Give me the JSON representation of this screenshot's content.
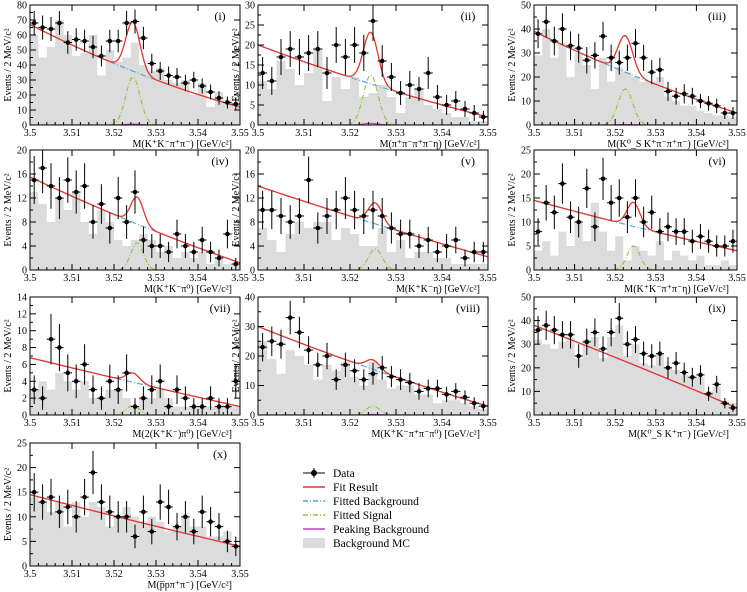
{
  "figure": {
    "legend": [
      {
        "label": "Data",
        "style": "data",
        "color": "#000000"
      },
      {
        "label": "Fit  Result",
        "style": "line",
        "color": "#e8342c"
      },
      {
        "label": "Fitted  Background",
        "style": "dashdot",
        "color": "#4aa8d8"
      },
      {
        "label": "Fitted  Signal",
        "style": "dashdot",
        "color": "#8cc83c"
      },
      {
        "label": "Peaking  Background",
        "style": "line",
        "color": "#c040c0"
      },
      {
        "label": "Background  MC",
        "style": "box",
        "color": "#dcdcdc"
      }
    ],
    "ylabel_text": "Events  /  2  MeV/c²",
    "xticks": [
      "3.5",
      "3.51",
      "3.52",
      "3.53",
      "3.54",
      "3.55"
    ]
  },
  "chart_data": [
    {
      "type": "scatter",
      "panel": "(i)",
      "xlabel": "M(K⁺K⁻π⁺π⁻) [GeV/c²]",
      "ylabel": "Events / 2 MeV/c²",
      "xlim": [
        3.5,
        3.55
      ],
      "ylim": [
        0,
        80
      ],
      "yticks": [
        "0",
        "10",
        "20",
        "30",
        "40",
        "50",
        "60",
        "70",
        "80"
      ],
      "data_y": [
        68,
        65,
        64,
        68,
        55,
        57,
        56,
        52,
        46,
        56,
        56,
        68,
        69,
        58,
        41,
        36,
        33,
        32,
        28,
        30,
        26,
        22,
        18,
        15,
        14
      ],
      "errors": [
        8,
        8,
        8,
        8,
        7.5,
        7.5,
        7.5,
        7.5,
        7,
        7.5,
        7.5,
        8,
        8,
        7.5,
        6.5,
        6,
        6,
        6,
        5.5,
        5.5,
        5,
        5,
        4.5,
        4,
        4
      ],
      "mc": [
        60,
        45,
        52,
        70,
        60,
        46,
        48,
        60,
        33,
        50,
        42,
        45,
        55,
        40,
        36,
        38,
        30,
        28,
        30,
        20,
        28,
        12,
        22,
        17,
        14
      ],
      "bkg_start": 67,
      "bkg_end": 12,
      "bkg_curv": 0.3,
      "sig_peak": 3.5245,
      "sig_amp": 32,
      "sig_w": 0.0017,
      "peaking": 0.6
    },
    {
      "type": "scatter",
      "panel": "(ii)",
      "xlabel": "M(π⁺π⁻π⁺π⁻η) [GeV/c²]",
      "ylabel": "Events / 2 MeV/c²",
      "xlim": [
        3.5,
        3.55
      ],
      "ylim": [
        0,
        30
      ],
      "yticks": [
        "0",
        "5",
        "10",
        "15",
        "20",
        "25",
        "30"
      ],
      "data_y": [
        13,
        11,
        17,
        19,
        17,
        18,
        19,
        13,
        20,
        17,
        20,
        18,
        26,
        16,
        12,
        8,
        10,
        9,
        13,
        7,
        5,
        6,
        4,
        3,
        2
      ],
      "errors": [
        4,
        3.5,
        4.5,
        4.5,
        4.5,
        4.5,
        4.5,
        4,
        4.5,
        4.5,
        4.5,
        4.5,
        5,
        4,
        3.5,
        3,
        3.5,
        3,
        4,
        3,
        2.5,
        2.5,
        2,
        2,
        1.5
      ],
      "mc": [
        11,
        9,
        16,
        14,
        10,
        13,
        19,
        6,
        12,
        9,
        12,
        7,
        8,
        10,
        7,
        3,
        7,
        9,
        5,
        4,
        3,
        2,
        2,
        1,
        1
      ],
      "bkg_start": 20,
      "bkg_end": 2,
      "bkg_curv": 0.2,
      "sig_peak": 3.5245,
      "sig_amp": 12.5,
      "sig_w": 0.0016,
      "peaking": 0.4
    },
    {
      "type": "scatter",
      "panel": "(iii)",
      "xlabel": "M(K⁰_S K⁺π⁻π⁺π⁻) [GeV/c²]",
      "ylabel": "Events / 2 MeV/c²",
      "xlim": [
        3.5,
        3.55
      ],
      "ylim": [
        0,
        50
      ],
      "yticks": [
        "0",
        "10",
        "20",
        "30",
        "40",
        "50"
      ],
      "data_y": [
        38,
        43,
        35,
        40,
        33,
        32,
        27,
        29,
        37,
        28,
        26,
        28,
        34,
        28,
        22,
        23,
        14,
        12,
        13,
        12,
        10,
        9,
        8,
        5,
        5
      ],
      "errors": [
        6,
        6.5,
        6,
        6.5,
        6,
        6,
        5.5,
        5.5,
        6,
        5.5,
        5,
        5.5,
        6,
        5.5,
        5,
        5,
        4,
        3.5,
        4,
        3.5,
        3,
        3,
        3,
        2.5,
        2.5
      ],
      "mc": [
        29,
        40,
        28,
        34,
        20,
        30,
        25,
        15,
        28,
        18,
        24,
        22,
        20,
        18,
        18,
        20,
        12,
        10,
        8,
        8,
        6,
        5,
        4,
        4,
        3
      ],
      "bkg_start": 39,
      "bkg_end": 5,
      "bkg_curv": 0.2,
      "sig_peak": 3.5225,
      "sig_amp": 15,
      "sig_w": 0.0018,
      "peaking": 0.2
    },
    {
      "type": "scatter",
      "panel": "(iv)",
      "xlabel": "M(K⁺K⁻π⁰) [GeV/c²]",
      "ylabel": "Events / 2 MeV/c²",
      "xlim": [
        3.5,
        3.55
      ],
      "ylim": [
        0,
        20
      ],
      "yticks": [
        "0",
        "4",
        "8",
        "12",
        "16",
        "20"
      ],
      "data_y": [
        15,
        17,
        14,
        12,
        15,
        13,
        14,
        8,
        11,
        7,
        12,
        8,
        13,
        5,
        4,
        4,
        3,
        6,
        4,
        3,
        5,
        3,
        2,
        6,
        1
      ],
      "errors": [
        4,
        4.2,
        3.8,
        3.5,
        3.8,
        3.6,
        3.8,
        2.8,
        3.3,
        2.6,
        3.5,
        2.8,
        3.6,
        2.2,
        2,
        2,
        1.7,
        2.4,
        2,
        1.7,
        2.2,
        1.7,
        1.4,
        2.4,
        1
      ],
      "mc": [
        13,
        11,
        8,
        12,
        10,
        13,
        8,
        6,
        10,
        8,
        5,
        4,
        5,
        6,
        5,
        3,
        4,
        2,
        3,
        2,
        3,
        1,
        2,
        1,
        1
      ],
      "bkg_start": 15.5,
      "bkg_end": 1.2,
      "bkg_curv": 0.15,
      "sig_peak": 3.5255,
      "sig_amp": 4.5,
      "sig_w": 0.0015,
      "peaking": 0
    },
    {
      "type": "scatter",
      "panel": "(v)",
      "xlabel": "M(K⁺K⁻η) [GeV/c²]",
      "ylabel": "Events / 2 MeV/c²",
      "xlim": [
        3.5,
        3.55
      ],
      "ylim": [
        0,
        20
      ],
      "yticks": [
        "0",
        "4",
        "8",
        "12",
        "16",
        "20"
      ],
      "data_y": [
        10,
        10,
        9,
        8,
        9,
        15,
        7,
        9,
        10,
        12,
        10,
        9,
        10,
        9,
        7,
        6,
        6,
        4,
        5,
        3,
        4,
        5,
        2,
        3,
        3
      ],
      "errors": [
        3.2,
        3.2,
        3,
        2.8,
        3,
        3.9,
        2.6,
        3,
        3.2,
        3.5,
        3.2,
        3,
        3.2,
        3,
        2.6,
        2.4,
        2.4,
        2,
        2.2,
        1.7,
        2,
        2.2,
        1.4,
        1.7,
        1.7
      ],
      "mc": [
        7,
        5,
        3,
        6,
        8,
        7,
        8,
        8,
        5,
        7,
        6,
        4,
        4,
        7,
        3,
        5,
        2,
        3,
        3,
        2,
        2,
        1,
        1,
        1,
        1
      ],
      "bkg_start": 14,
      "bkg_end": 2.2,
      "bkg_curv": 0.1,
      "sig_peak": 3.5255,
      "sig_amp": 3.5,
      "sig_w": 0.0015,
      "peaking": 0
    },
    {
      "type": "scatter",
      "panel": "(vi)",
      "xlabel": "M(K⁺K⁻π⁺π⁻η) [GeV/c²]",
      "ylabel": "Events / 2 MeV/c²",
      "xlim": [
        3.5,
        3.55
      ],
      "ylim": [
        0,
        25
      ],
      "yticks": [
        "0",
        "5",
        "10",
        "15",
        "20",
        "25"
      ],
      "data_y": [
        8,
        14,
        12,
        18,
        11,
        10,
        17,
        9,
        19,
        14,
        15,
        11,
        15,
        10,
        12,
        8,
        9,
        8,
        8,
        6,
        7,
        6,
        5,
        5,
        6
      ],
      "errors": [
        2.8,
        3.7,
        3.5,
        4.2,
        3.3,
        3.2,
        4.1,
        3,
        4.4,
        3.7,
        3.9,
        3.3,
        3.9,
        3.2,
        3.5,
        2.8,
        3,
        2.8,
        2.8,
        2.4,
        2.6,
        2.4,
        2.2,
        2.2,
        2.4
      ],
      "mc": [
        4,
        6,
        3,
        8,
        5,
        10,
        6,
        14,
        8,
        4,
        7,
        2,
        5,
        4,
        3,
        6,
        2,
        4,
        3,
        2,
        3,
        1,
        1,
        2,
        1
      ],
      "bkg_start": 14.5,
      "bkg_end": 4,
      "bkg_curv": 0.1,
      "sig_peak": 3.5245,
      "sig_amp": 5,
      "sig_w": 0.0016,
      "peaking": 0
    },
    {
      "type": "scatter",
      "panel": "(vii)",
      "xlabel": "M(2(K⁺K⁻)π⁰) [GeV/c²]",
      "ylabel": "Events / 2 MeV/c²",
      "xlim": [
        3.5,
        3.55
      ],
      "ylim": [
        0,
        14
      ],
      "yticks": [
        "0",
        "2",
        "4",
        "6",
        "8",
        "10",
        "12",
        "14"
      ],
      "data_y": [
        3,
        2,
        9,
        8,
        5,
        4,
        6,
        3,
        2,
        4,
        3,
        5,
        1,
        2,
        3,
        4,
        1,
        3,
        2,
        1,
        1,
        2,
        1,
        1,
        4
      ],
      "errors": [
        1.7,
        1.4,
        3,
        2.8,
        2.2,
        2,
        2.4,
        1.7,
        1.4,
        2,
        1.7,
        2.2,
        1,
        1.4,
        1.7,
        2,
        1,
        1.7,
        1.4,
        1,
        1,
        1.4,
        1,
        1,
        2
      ],
      "mc": [
        3,
        4,
        3,
        5,
        4,
        3,
        4,
        2,
        2,
        3,
        3,
        2,
        1,
        2,
        2,
        3,
        2,
        1,
        1,
        1,
        1,
        1,
        1,
        1,
        1
      ],
      "bkg_start": 6.8,
      "bkg_end": 1,
      "bkg_curv": 0.05,
      "sig_peak": 3.5245,
      "sig_amp": 1.1,
      "sig_w": 0.0016,
      "peaking": 0
    },
    {
      "type": "scatter",
      "panel": "(viii)",
      "xlabel": "M(K⁺K⁻π⁺π⁻π⁰) [GeV/c²]",
      "ylabel": "Events / 2 MeV/c²",
      "xlim": [
        3.5,
        3.55
      ],
      "ylim": [
        0,
        40
      ],
      "yticks": [
        "0",
        "10",
        "20",
        "30",
        "40"
      ],
      "data_y": [
        23,
        25,
        24,
        33,
        28,
        22,
        17,
        20,
        12,
        17,
        15,
        12,
        14,
        16,
        13,
        12,
        11,
        8,
        9,
        9,
        7,
        8,
        6,
        4,
        3
      ],
      "errors": [
        4.8,
        5,
        4.9,
        5.7,
        5.3,
        4.7,
        4.1,
        4.5,
        3.5,
        4.1,
        3.9,
        3.5,
        3.7,
        4,
        3.6,
        3.5,
        3.3,
        2.8,
        3,
        3,
        2.6,
        2.8,
        2.4,
        2,
        1.7
      ],
      "mc": [
        25,
        19,
        14,
        22,
        20,
        17,
        12,
        17,
        15,
        18,
        13,
        10,
        18,
        12,
        9,
        10,
        10,
        7,
        7,
        4,
        5,
        5,
        4,
        3,
        2
      ],
      "bkg_start": 30,
      "bkg_end": 3,
      "bkg_curv": 0.15,
      "sig_peak": 3.525,
      "sig_amp": 3,
      "sig_w": 0.0015,
      "peaking": 0.2
    },
    {
      "type": "scatter",
      "panel": "(ix)",
      "xlabel": "M(K⁰_S K⁺π⁻) [GeV/c²]",
      "ylabel": "Events / 2 MeV/c²",
      "xlim": [
        3.5,
        3.55
      ],
      "ylim": [
        0,
        50
      ],
      "yticks": [
        "0",
        "10",
        "20",
        "30",
        "40",
        "50"
      ],
      "data_y": [
        36,
        38,
        36,
        34,
        34,
        25,
        31,
        35,
        28,
        35,
        41,
        30,
        32,
        26,
        25,
        26,
        20,
        22,
        18,
        16,
        17,
        9,
        13,
        5,
        3
      ],
      "errors": [
        6,
        6.2,
        6,
        5.8,
        5.8,
        5,
        5.6,
        5.9,
        5.3,
        5.9,
        6.4,
        5.5,
        5.7,
        5.1,
        5,
        5.1,
        4.5,
        4.7,
        4.2,
        4,
        4.1,
        3,
        3.6,
        2.2,
        1.7
      ],
      "mc": [
        32,
        30,
        28,
        31,
        33,
        24,
        32,
        33,
        24,
        33,
        38,
        25,
        30,
        22,
        21,
        26,
        20,
        19,
        17,
        16,
        16,
        10,
        12,
        6,
        5
      ],
      "bkg_start": 38,
      "bkg_end": 3,
      "bkg_curv": -0.05,
      "sig_peak": 3.5245,
      "sig_amp": 0,
      "sig_w": 0.0016,
      "peaking": 0
    },
    {
      "type": "scatter",
      "panel": "(x)",
      "xlabel": "M(p̅pπ⁺π⁻) [GeV/c²]",
      "ylabel": "Events / 2 MeV/c²",
      "xlim": [
        3.5,
        3.55
      ],
      "ylim": [
        0,
        25
      ],
      "yticks": [
        "0",
        "5",
        "10",
        "15",
        "20",
        "25"
      ],
      "data_y": [
        15,
        13,
        14,
        11,
        12,
        10,
        14,
        19,
        13,
        11,
        10,
        10,
        6,
        11,
        7,
        13,
        12,
        8,
        10,
        7,
        11,
        9,
        8,
        5,
        4
      ],
      "errors": [
        3.9,
        3.6,
        3.7,
        3.3,
        3.5,
        3.2,
        3.7,
        4.4,
        3.6,
        3.3,
        3.2,
        3.2,
        2.4,
        3.3,
        2.6,
        3.6,
        3.5,
        2.8,
        3.2,
        2.6,
        3.3,
        3,
        2.8,
        2.2,
        2
      ],
      "mc": [
        14,
        13,
        11,
        13,
        8,
        13,
        10,
        13,
        12,
        8,
        10,
        12,
        10,
        9,
        10,
        9,
        7,
        8,
        10,
        8,
        8,
        6,
        6,
        7,
        4
      ],
      "bkg_start": 14.5,
      "bkg_end": 4,
      "bkg_curv": 0.05,
      "sig_peak": 3.5245,
      "sig_amp": 0,
      "sig_w": 0.0016,
      "peaking": 0
    }
  ]
}
